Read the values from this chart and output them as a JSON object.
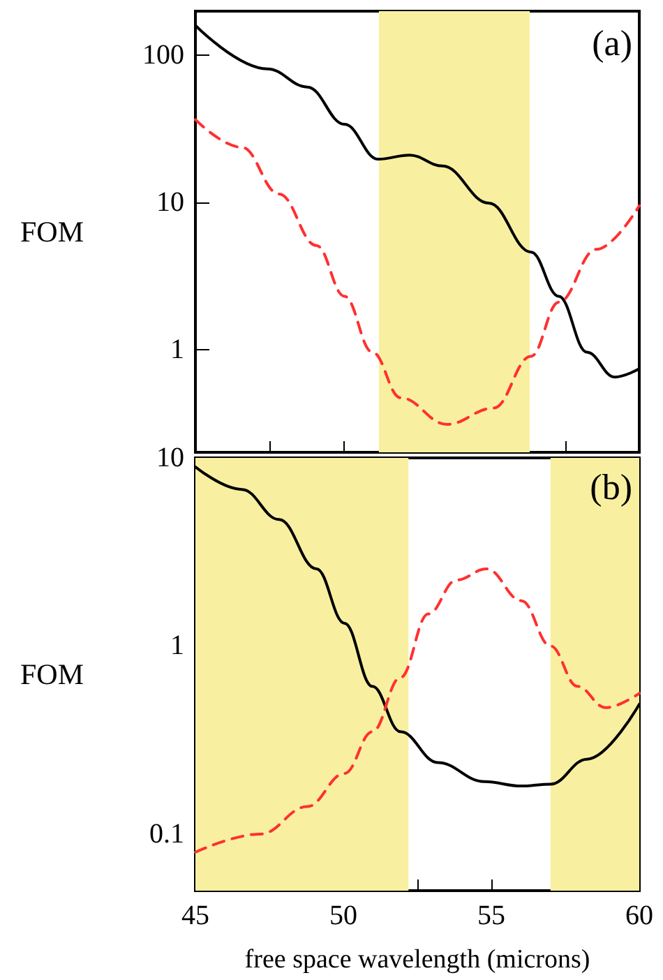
{
  "chart_data": [
    {
      "type": "line",
      "ylabel": "FOM",
      "annotations": [
        "(a)"
      ],
      "log": "y",
      "tick_labels": "y",
      "xlim": [
        45,
        60
      ],
      "ylim": [
        0.2,
        200
      ],
      "xticks": [
        45,
        {
          "value": 47.5,
          "label": null
        },
        50,
        {
          "value": 52.5,
          "label": null
        },
        55,
        {
          "value": 57.5,
          "label": null
        },
        60
      ],
      "yticks": [
        1,
        10,
        100
      ],
      "bands": [
        {
          "axis": "x",
          "from": 51.2,
          "to": 56.3,
          "color": "#f8f0a0"
        }
      ],
      "series": [
        {
          "color": "#000000",
          "line_style": "solid",
          "x": [
            45,
            47.44,
            48.78,
            50.04,
            51.17,
            52.24,
            53.35,
            54.92,
            56.34,
            57.28,
            58.23,
            59.17,
            60
          ],
          "values": [
            160,
            81,
            61,
            34,
            19.7,
            21,
            17.7,
            9.9,
            4.6,
            2.3,
            0.96,
            0.65,
            0.74
          ]
        },
        {
          "color": "#ff3030",
          "line_style": "dashed",
          "x": [
            45,
            46.57,
            47.83,
            49.09,
            50.04,
            50.98,
            51.93,
            53.5,
            55.08,
            56.34,
            57.28,
            58.54,
            60
          ],
          "values": [
            36.6,
            23.7,
            11.4,
            5.1,
            2.3,
            0.96,
            0.47,
            0.31,
            0.4,
            0.9,
            2.1,
            4.8,
            9.5
          ]
        }
      ]
    },
    {
      "type": "line",
      "ylabel": "FOM",
      "xlabel": "free space wavelength (microns)",
      "annotations": [
        "(b)"
      ],
      "log": "y",
      "xlim": [
        45,
        60
      ],
      "ylim": [
        0.05,
        10
      ],
      "xticks": [
        45,
        {
          "value": 47.5,
          "label": null
        },
        50,
        {
          "value": 52.5,
          "label": null
        },
        55,
        {
          "value": 57.5,
          "label": null
        },
        60
      ],
      "yticks": [
        0.1,
        1,
        10
      ],
      "bands": [
        {
          "axis": "x",
          "from": 45,
          "to": 52.2,
          "color": "#f8f0a0"
        },
        {
          "axis": "x",
          "from": 57,
          "to": 60,
          "color": "#f8f0a0"
        }
      ],
      "series": [
        {
          "color": "#000000",
          "line_style": "solid",
          "x": [
            45,
            46.57,
            47.83,
            49.09,
            50.04,
            50.98,
            51.93,
            53.19,
            54.76,
            56.02,
            57,
            58.23,
            60
          ],
          "values": [
            8.95,
            6.8,
            4.7,
            2.57,
            1.32,
            0.61,
            0.35,
            0.24,
            0.19,
            0.18,
            0.184,
            0.25,
            0.49
          ]
        },
        {
          "color": "#ff3030",
          "line_style": "dashed",
          "x": [
            45,
            47.2,
            48.78,
            50.04,
            50.98,
            51.93,
            52.87,
            53.82,
            54.84,
            56.02,
            57,
            57.91,
            58.86,
            60
          ],
          "values": [
            0.08,
            0.1,
            0.14,
            0.21,
            0.35,
            0.68,
            1.48,
            2.24,
            2.57,
            1.74,
            1.0,
            0.61,
            0.47,
            0.56
          ]
        }
      ]
    }
  ]
}
